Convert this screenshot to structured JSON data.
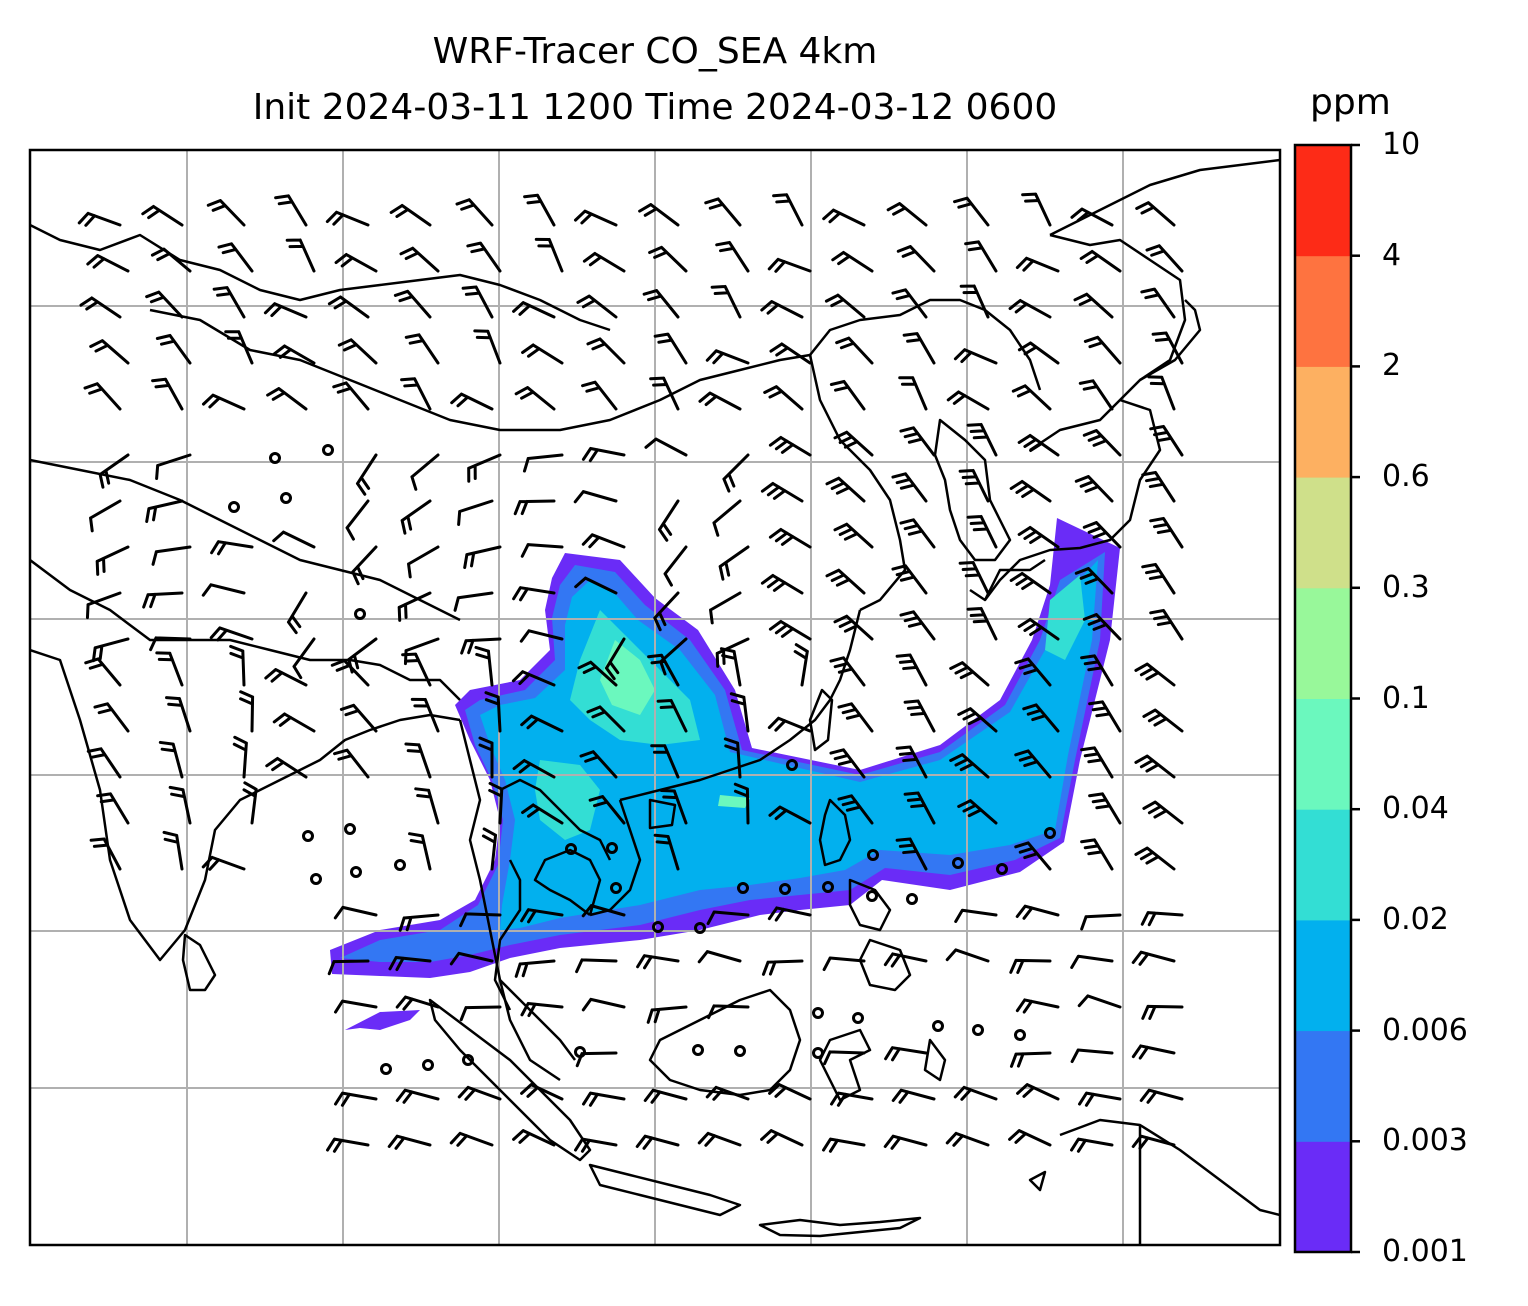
{
  "title": {
    "line1": "WRF-Tracer CO_SEA 4km",
    "line2": "Init 2024-03-11 1200 Time 2024-03-12 0600"
  },
  "colorbar": {
    "unit": "ppm",
    "levels": [
      "0.001",
      "0.003",
      "0.006",
      "0.02",
      "0.04",
      "0.1",
      "0.3",
      "0.6",
      "2",
      "4",
      "10"
    ],
    "colors": [
      "#6a2cf7",
      "#3377f3",
      "#02b0ee",
      "#33ded4",
      "#6bf8be",
      "#98f89a",
      "#cfe08a",
      "#fdb061",
      "#fe7340",
      "#fd2b17"
    ]
  },
  "map": {
    "gridlines": "on",
    "wind_symbols": "barbs and calm circles (black)",
    "plume_levels_present": [
      "0.001",
      "0.003",
      "0.006",
      "0.02",
      "0.04"
    ]
  }
}
